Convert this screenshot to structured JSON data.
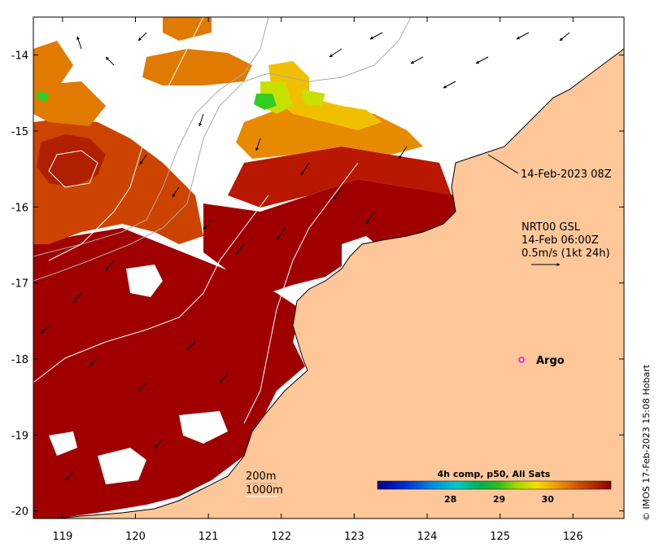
{
  "map": {
    "lon_ticks": [
      "119",
      "120",
      "121",
      "122",
      "123",
      "124",
      "125",
      "126"
    ],
    "lat_ticks": [
      "-14",
      "-15",
      "-16",
      "-17",
      "-18",
      "-19",
      "-20"
    ],
    "lon_range": [
      118.6,
      126.7
    ],
    "lat_range": [
      -20.1,
      -13.5
    ],
    "colors": {
      "land": "#fdc79a",
      "sst_hot": "#a00000",
      "sst_warm": "#cc4400",
      "sst_mid": "#e07a00",
      "sst_cool": "#f0c000",
      "sst_cooler": "#c8e000",
      "sst_green": "#33cc22",
      "cloud": "#ffffff",
      "coast": "#000000",
      "isobath": "#aaaaaa"
    }
  },
  "annotations": {
    "track_time": "14-Feb-2023 08Z",
    "current_source": "NRT00 GSL",
    "current_time": "14-Feb 06:00Z",
    "current_scale": "0.5m/s (1kt 24h)",
    "argo_label": "Argo",
    "isobath_200": "200m",
    "isobath_1000": "1000m"
  },
  "colorbar": {
    "title": "4h comp, p50, All Sats",
    "ticks": [
      "28",
      "29",
      "30"
    ],
    "range": [
      26.5,
      31.3
    ]
  },
  "credit": "© IMOS 17-Feb-2023 15:08 Hobart"
}
